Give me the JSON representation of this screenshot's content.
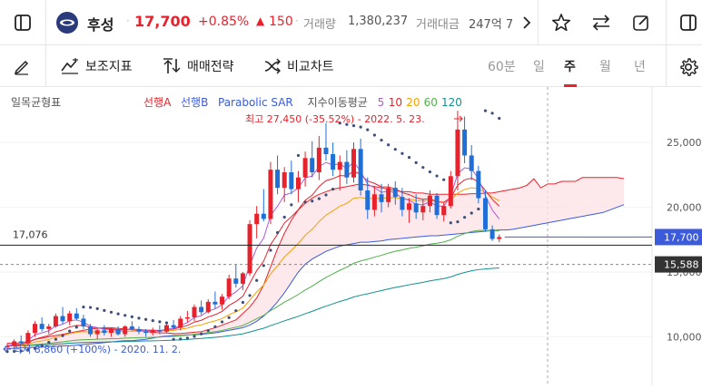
{
  "header": {
    "stock_name": "후성",
    "price": "17,700",
    "change_pct": "+0.85%",
    "change_arrow": "▲",
    "change_abs": "150",
    "volume_label": "거래량",
    "volume_value": "1,380,237",
    "amount_label": "거래대금",
    "amount_value": "247억 7"
  },
  "toolbar": {
    "indicator_label": "보조지표",
    "drawing_label": "매매전략",
    "compare_label": "비교차트",
    "periods": [
      "60분",
      "일",
      "주",
      "월",
      "년"
    ],
    "active_period": "주"
  },
  "chart_data": {
    "type": "candlestick",
    "title": "일목균형표",
    "legend": [
      {
        "name": "선행A",
        "color": "#e8222c"
      },
      {
        "name": "선행B",
        "color": "#3b5bdb"
      },
      {
        "name": "Parabolic SAR",
        "color": "#3b5bdb"
      },
      {
        "name": "지수이동평균",
        "color": "#555555"
      },
      {
        "name": "5",
        "color": "#b05ad6"
      },
      {
        "name": "10",
        "color": "#e8222c"
      },
      {
        "name": "20",
        "color": "#f59f00"
      },
      {
        "name": "60",
        "color": "#51b04a"
      },
      {
        "name": "120",
        "color": "#138f8f"
      }
    ],
    "y_ticks": [
      10000,
      15000,
      20000,
      25000
    ],
    "y_tick_labels": [
      "10,000",
      "15,000",
      "20,000",
      "25,000"
    ],
    "ylim": [
      8000,
      27600
    ],
    "current_price": 17700,
    "current_price_label": "17,700",
    "reference_line": 17076,
    "reference_line_label": "17,076",
    "dashed_level": 15588,
    "dashed_level_label": "15,588",
    "high_annotation": "최고 27,450 (-35.52%) - 2022. 5. 23.",
    "low_annotation": "최저 8,860 (+100%) - 2020. 11. 2.",
    "candles": [
      [
        9200,
        9500,
        8860,
        9300
      ],
      [
        9300,
        9800,
        9100,
        9650
      ],
      [
        9650,
        10100,
        9400,
        9500
      ],
      [
        9500,
        10500,
        9300,
        10300
      ],
      [
        10300,
        11200,
        10000,
        11000
      ],
      [
        11000,
        11500,
        10400,
        10600
      ],
      [
        10600,
        11000,
        10200,
        10800
      ],
      [
        10800,
        11800,
        10700,
        11600
      ],
      [
        11600,
        12300,
        11000,
        11200
      ],
      [
        11200,
        12000,
        10900,
        11800
      ],
      [
        11800,
        12200,
        11300,
        11400
      ],
      [
        11400,
        11700,
        10600,
        10800
      ],
      [
        10800,
        11000,
        10000,
        10200
      ],
      [
        10200,
        10600,
        9800,
        10500
      ],
      [
        10500,
        10900,
        10100,
        10300
      ],
      [
        10300,
        10700,
        10000,
        10600
      ],
      [
        10600,
        10800,
        10100,
        10200
      ],
      [
        10200,
        10900,
        10000,
        10800
      ],
      [
        10800,
        11200,
        10500,
        10600
      ],
      [
        10600,
        10800,
        10200,
        10400
      ],
      [
        10400,
        10600,
        10000,
        10300
      ],
      [
        10300,
        10700,
        10100,
        10500
      ],
      [
        10500,
        10900,
        10200,
        10400
      ],
      [
        10400,
        11000,
        10300,
        10900
      ],
      [
        10900,
        11300,
        10600,
        10700
      ],
      [
        10700,
        11600,
        10500,
        11400
      ],
      [
        11400,
        12000,
        11100,
        11500
      ],
      [
        11500,
        12500,
        11200,
        12300
      ],
      [
        12300,
        12800,
        11700,
        11900
      ],
      [
        11900,
        12900,
        11800,
        12700
      ],
      [
        12700,
        13500,
        12200,
        12500
      ],
      [
        12500,
        13300,
        12100,
        13100
      ],
      [
        13100,
        14800,
        12900,
        14500
      ],
      [
        14500,
        15600,
        13800,
        14100
      ],
      [
        14100,
        15000,
        13600,
        14900
      ],
      [
        14900,
        19000,
        14700,
        18700
      ],
      [
        18700,
        20100,
        17600,
        19500
      ],
      [
        19500,
        21400,
        18900,
        19100
      ],
      [
        19100,
        23500,
        18700,
        22900
      ],
      [
        22900,
        24000,
        21000,
        21500
      ],
      [
        21500,
        23100,
        20400,
        22700
      ],
      [
        22700,
        23600,
        21000,
        21400
      ],
      [
        21400,
        22800,
        20400,
        22300
      ],
      [
        22300,
        24300,
        21600,
        23800
      ],
      [
        23800,
        25100,
        22300,
        22700
      ],
      [
        22700,
        25500,
        22100,
        24600
      ],
      [
        24600,
        26500,
        23600,
        24100
      ],
      [
        24100,
        25000,
        22400,
        22900
      ],
      [
        22900,
        24000,
        21300,
        23500
      ],
      [
        23500,
        24400,
        21800,
        22300
      ],
      [
        22300,
        25000,
        21900,
        24500
      ],
      [
        24500,
        25300,
        20900,
        21300
      ],
      [
        21300,
        22300,
        19100,
        19800
      ],
      [
        19800,
        21600,
        19300,
        21000
      ],
      [
        21000,
        21800,
        19600,
        20400
      ],
      [
        20400,
        21800,
        20000,
        21500
      ],
      [
        21500,
        22000,
        20200,
        20800
      ],
      [
        20800,
        21500,
        19300,
        19800
      ],
      [
        19800,
        20700,
        18800,
        20300
      ],
      [
        20300,
        21000,
        19100,
        19600
      ],
      [
        19600,
        20600,
        19000,
        20100
      ],
      [
        20100,
        21300,
        19600,
        20900
      ],
      [
        20900,
        21100,
        19100,
        19400
      ],
      [
        19400,
        20400,
        18900,
        20100
      ],
      [
        20100,
        22800,
        19900,
        22400
      ],
      [
        22400,
        27450,
        21300,
        26000
      ],
      [
        26000,
        27000,
        23400,
        24000
      ],
      [
        24000,
        24800,
        22100,
        22800
      ],
      [
        22800,
        23200,
        20300,
        20700
      ],
      [
        20700,
        21300,
        18100,
        18300
      ],
      [
        18300,
        18600,
        17400,
        17550
      ],
      [
        17550,
        17900,
        17300,
        17700
      ]
    ],
    "senkou_a": [
      9500,
      9500,
      9550,
      9600,
      9800,
      9900,
      10000,
      10100,
      10200,
      10300,
      10400,
      10500,
      10600,
      10650,
      10700,
      10700,
      10650,
      10600,
      10550,
      10500,
      10400,
      10350,
      10300,
      10300,
      10250,
      10250,
      10300,
      10350,
      10400,
      10550,
      10700,
      10900,
      11100,
      11300,
      11800,
      12300,
      13000,
      14000,
      15400,
      16800,
      18000,
      19000,
      19800,
      20300,
      20700,
      21000,
      21200,
      21400,
      21500,
      21600,
      21700,
      21800,
      21700,
      21600,
      21500,
      21400,
      21300,
      21200,
      21200,
      21100,
      21100,
      21000,
      21000,
      21000,
      21000,
      21000,
      21000,
      21050,
      21050,
      21100,
      21100,
      21200,
      21300,
      21400,
      21500,
      21700,
      22200,
      21500,
      21800,
      21800,
      22000,
      22000,
      22000,
      22300,
      22300,
      22300,
      22300,
      22300,
      22300,
      22200
    ],
    "senkou_b": [
      9100,
      9100,
      9150,
      9150,
      9200,
      9200,
      9250,
      9250,
      9300,
      9300,
      9350,
      9400,
      9450,
      9500,
      9550,
      9600,
      9650,
      9700,
      9700,
      9750,
      9800,
      9900,
      10000,
      10050,
      10100,
      10100,
      10150,
      10150,
      10200,
      10250,
      10300,
      10400,
      10500,
      10600,
      10700,
      10900,
      11200,
      11600,
      12100,
      12700,
      13400,
      14200,
      15000,
      15600,
      16000,
      16300,
      16600,
      16800,
      17000,
      17100,
      17200,
      17300,
      17300,
      17350,
      17400,
      17500,
      17550,
      17600,
      17650,
      17700,
      17750,
      17800,
      17800,
      17850,
      17900,
      17950,
      18000,
      18050,
      18100,
      18150,
      18200,
      18250,
      18250,
      18300,
      18400,
      18500,
      18600,
      18700,
      18800,
      18900,
      19000,
      19100,
      19200,
      19300,
      19400,
      19500,
      19600,
      19800,
      20000,
      20200
    ]
  }
}
